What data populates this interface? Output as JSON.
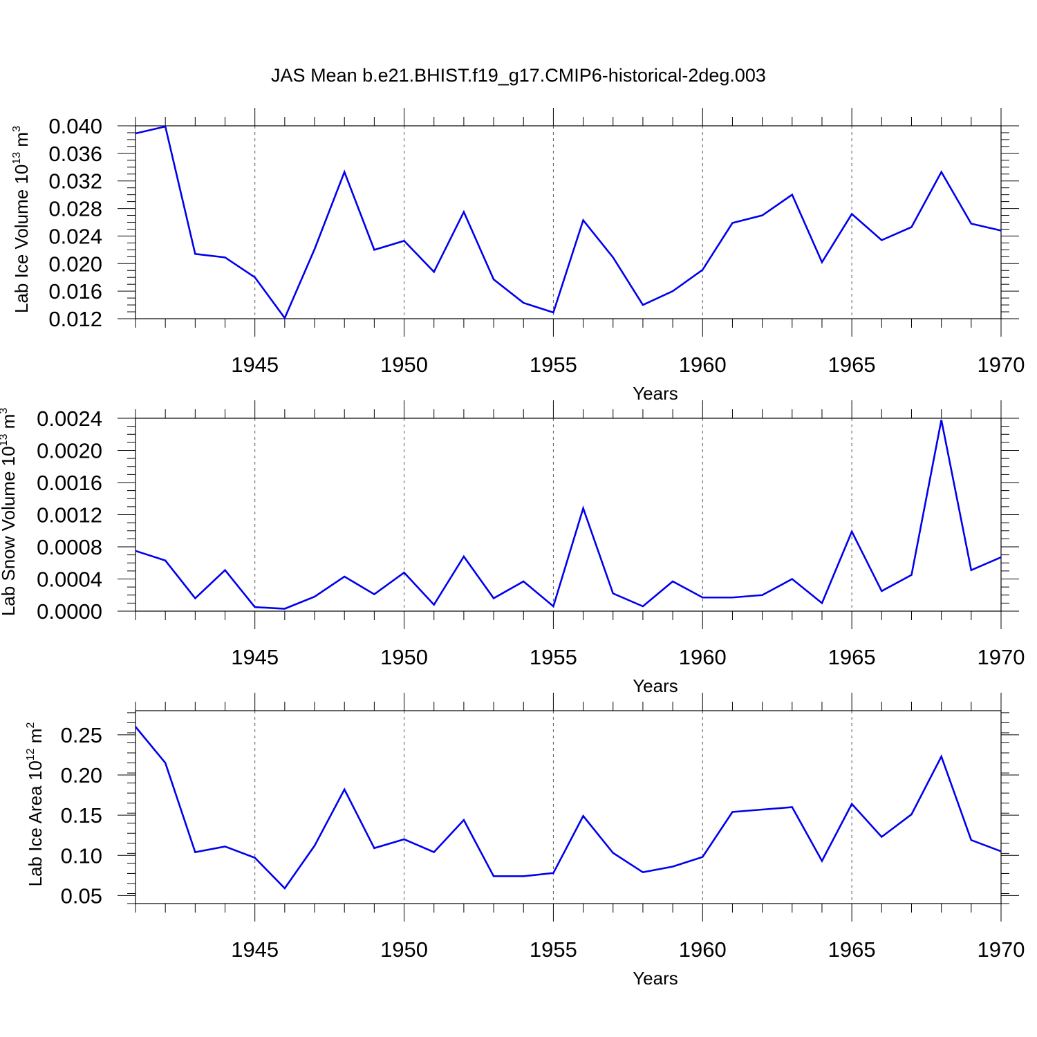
{
  "figure_title": "JAS Mean b.e21.BHIST.f19_g17.CMIP6-historical-2deg.003",
  "line_color": "#0000ee",
  "chart_data": [
    {
      "type": "line",
      "id": "ice-volume",
      "ylabel_main": "Lab Ice Volume 10",
      "ylabel_exp": "13",
      "ylabel_unit": " m",
      "ylabel_unit_exp": "3",
      "xlabel": "Years",
      "ylim": [
        0.012,
        0.04
      ],
      "yticks": [
        0.012,
        0.016,
        0.02,
        0.024,
        0.028,
        0.032,
        0.036,
        0.04
      ],
      "ytick_labels": [
        "0.012",
        "0.016",
        "0.020",
        "0.024",
        "0.028",
        "0.032",
        "0.036",
        "0.040"
      ],
      "xlim": [
        1941,
        1970
      ],
      "xticks": [
        1945,
        1950,
        1955,
        1960,
        1965,
        1970
      ],
      "xtick_labels": [
        "1945",
        "1950",
        "1955",
        "1960",
        "1965",
        "1970"
      ],
      "x": [
        1941,
        1942,
        1943,
        1944,
        1945,
        1946,
        1947,
        1948,
        1949,
        1950,
        1951,
        1952,
        1953,
        1954,
        1955,
        1956,
        1957,
        1958,
        1959,
        1960,
        1961,
        1962,
        1963,
        1964,
        1965,
        1966,
        1967,
        1968,
        1969,
        1970
      ],
      "values": [
        0.0389,
        0.0399,
        0.0214,
        0.0209,
        0.018,
        0.0121,
        0.0221,
        0.0333,
        0.022,
        0.0233,
        0.0188,
        0.0275,
        0.0177,
        0.0143,
        0.0129,
        0.0263,
        0.0209,
        0.014,
        0.016,
        0.0191,
        0.0259,
        0.027,
        0.03,
        0.0202,
        0.0272,
        0.0234,
        0.0253,
        0.0333,
        0.0258,
        0.0248
      ]
    },
    {
      "type": "line",
      "id": "snow-volume",
      "ylabel_main": "Lab Snow Volume 10",
      "ylabel_exp": "13",
      "ylabel_unit": " m",
      "ylabel_unit_exp": "3",
      "xlabel": "Years",
      "ylim": [
        0.0,
        0.0024
      ],
      "yticks": [
        0.0,
        0.0004,
        0.0008,
        0.0012,
        0.0016,
        0.002,
        0.0024
      ],
      "ytick_labels": [
        "0.0000",
        "0.0004",
        "0.0008",
        "0.0012",
        "0.0016",
        "0.0020",
        "0.0024"
      ],
      "xlim": [
        1941,
        1970
      ],
      "xticks": [
        1945,
        1950,
        1955,
        1960,
        1965,
        1970
      ],
      "xtick_labels": [
        "1945",
        "1950",
        "1955",
        "1960",
        "1965",
        "1970"
      ],
      "x": [
        1941,
        1942,
        1943,
        1944,
        1945,
        1946,
        1947,
        1948,
        1949,
        1950,
        1951,
        1952,
        1953,
        1954,
        1955,
        1956,
        1957,
        1958,
        1959,
        1960,
        1961,
        1962,
        1963,
        1964,
        1965,
        1966,
        1967,
        1968,
        1969,
        1970
      ],
      "values": [
        0.00075,
        0.00063,
        0.00016,
        0.00051,
        5e-05,
        3e-05,
        0.00018,
        0.00043,
        0.00021,
        0.00048,
        8e-05,
        0.00068,
        0.00016,
        0.00037,
        6e-05,
        0.00128,
        0.00022,
        6e-05,
        0.00037,
        0.00017,
        0.00017,
        0.0002,
        0.0004,
        0.0001,
        0.00099,
        0.00025,
        0.00045,
        0.00238,
        0.00051,
        0.00067
      ]
    },
    {
      "type": "line",
      "id": "ice-area",
      "ylabel_main": "Lab Ice Area 10",
      "ylabel_exp": "12",
      "ylabel_unit": " m",
      "ylabel_unit_exp": "2",
      "xlabel": "Years",
      "ylim": [
        0.04,
        0.28
      ],
      "yticks": [
        0.05,
        0.1,
        0.15,
        0.2,
        0.25
      ],
      "ytick_labels": [
        "0.05",
        "0.10",
        "0.15",
        "0.20",
        "0.25"
      ],
      "xlim": [
        1941,
        1970
      ],
      "xticks": [
        1945,
        1950,
        1955,
        1960,
        1965,
        1970
      ],
      "xtick_labels": [
        "1945",
        "1950",
        "1955",
        "1960",
        "1965",
        "1970"
      ],
      "x": [
        1941,
        1942,
        1943,
        1944,
        1945,
        1946,
        1947,
        1948,
        1949,
        1950,
        1951,
        1952,
        1953,
        1954,
        1955,
        1956,
        1957,
        1958,
        1959,
        1960,
        1961,
        1962,
        1963,
        1964,
        1965,
        1966,
        1967,
        1968,
        1969,
        1970
      ],
      "values": [
        0.26,
        0.215,
        0.104,
        0.111,
        0.097,
        0.059,
        0.112,
        0.182,
        0.109,
        0.12,
        0.104,
        0.144,
        0.074,
        0.074,
        0.078,
        0.149,
        0.103,
        0.079,
        0.086,
        0.098,
        0.154,
        0.157,
        0.16,
        0.093,
        0.164,
        0.123,
        0.151,
        0.223,
        0.119,
        0.105
      ]
    }
  ]
}
